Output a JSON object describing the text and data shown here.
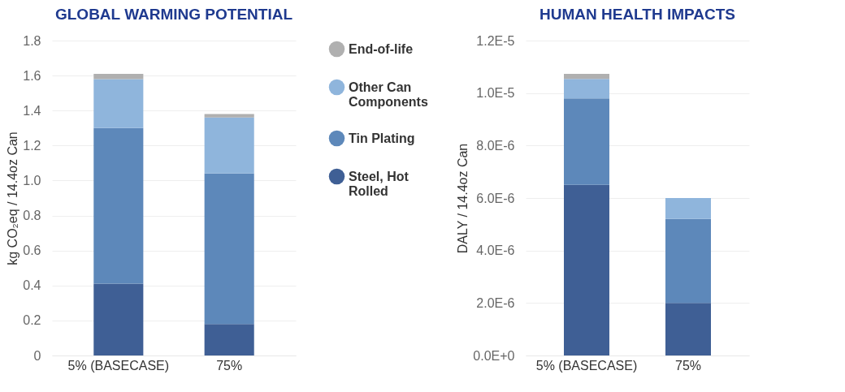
{
  "chart_data": [
    {
      "type": "bar",
      "title": "GLOBAL WARMING POTENTIAL",
      "ylabel": "kg CO₂eq / 14.4oz Can",
      "categories": [
        "5% (BASECASE)",
        "75%"
      ],
      "stacked": true,
      "grid": "y",
      "legend": "right",
      "ylim": [
        0,
        1.8
      ],
      "yticks": [
        0,
        0.2,
        0.4,
        0.6,
        0.8,
        {
          "value": 1,
          "label": "1.0"
        },
        1.2,
        1.4,
        1.6,
        1.8
      ],
      "series": [
        {
          "name": "Steel, Hot Rolled",
          "color": "#3f5f95",
          "values": [
            0.41,
            0.18
          ]
        },
        {
          "name": "Tin Plating",
          "color": "#5d88ba",
          "values": [
            0.89,
            0.86
          ]
        },
        {
          "name": "Other Can Components",
          "color": "#8fb5dc",
          "values": [
            0.28,
            0.32
          ]
        },
        {
          "name": "End-of-life",
          "color": "#b0b0b0",
          "values": [
            0.03,
            0.02
          ]
        }
      ]
    },
    {
      "type": "bar",
      "title": "HUMAN HEALTH IMPACTS",
      "ylabel": "DALY / 14.4oz Can",
      "categories": [
        "5% (BASECASE)",
        "75%"
      ],
      "stacked": true,
      "grid": "y",
      "ylim": [
        0,
        1.2e-05
      ],
      "yticks": [
        {
          "value": 0,
          "label": "0.0E+0"
        },
        {
          "value": 2e-06,
          "label": "2.0E-6"
        },
        {
          "value": 4e-06,
          "label": "4.0E-6"
        },
        {
          "value": 6e-06,
          "label": "6.0E-6"
        },
        {
          "value": 8e-06,
          "label": "8.0E-6"
        },
        {
          "value": 1e-05,
          "label": "1.0E-5"
        },
        {
          "value": 1.2e-05,
          "label": "1.2E-5"
        }
      ],
      "series": [
        {
          "color": "#3f5f95",
          "values": [
            6.5e-06,
            2e-06
          ]
        },
        {
          "color": "#5d88ba",
          "values": [
            3.3e-06,
            3.2e-06
          ]
        },
        {
          "color": "#8fb5dc",
          "values": [
            7.4e-07,
            8e-07
          ]
        },
        {
          "color": "#b0b0b0",
          "values": [
            1.9e-07,
            0
          ]
        }
      ]
    }
  ]
}
